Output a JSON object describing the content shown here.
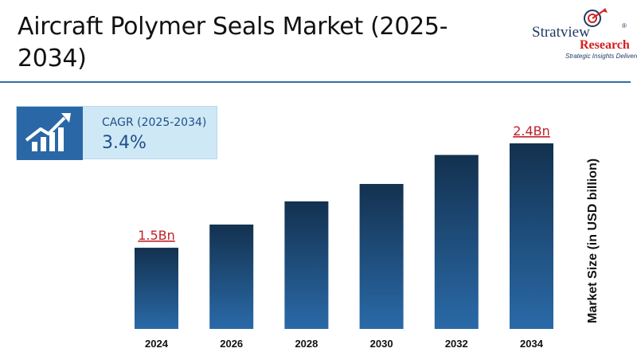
{
  "header": {
    "title": "Aircraft Polymer Seals Market (2025-2034)"
  },
  "logo": {
    "name": "Stratview",
    "registered": "®",
    "research": "Research",
    "tagline": "Strategic Insights Delivered"
  },
  "cagr": {
    "label": "CAGR (2025-2034)",
    "value": "3.4%",
    "icon": "growth-chart-icon"
  },
  "colors": {
    "bar_top": "#13314f",
    "bar_bottom": "#2a6aa8",
    "label_red": "#c0202a",
    "accent_blue": "#2f6fa3"
  },
  "chart_data": {
    "type": "bar",
    "title": "Aircraft Polymer Seals Market (2025-2034)",
    "categories": [
      "2024",
      "2026",
      "2028",
      "2030",
      "2032",
      "2034"
    ],
    "values": [
      1.5,
      1.7,
      1.9,
      2.05,
      2.3,
      2.4
    ],
    "data_labels": [
      "1.5Bn",
      "",
      "",
      "",
      "",
      "2.4Bn"
    ],
    "xlabel": "",
    "ylabel": "Market Size (in USD billion)",
    "ylim": [
      0.8,
      2.4
    ],
    "grid": false,
    "legend": "none"
  }
}
